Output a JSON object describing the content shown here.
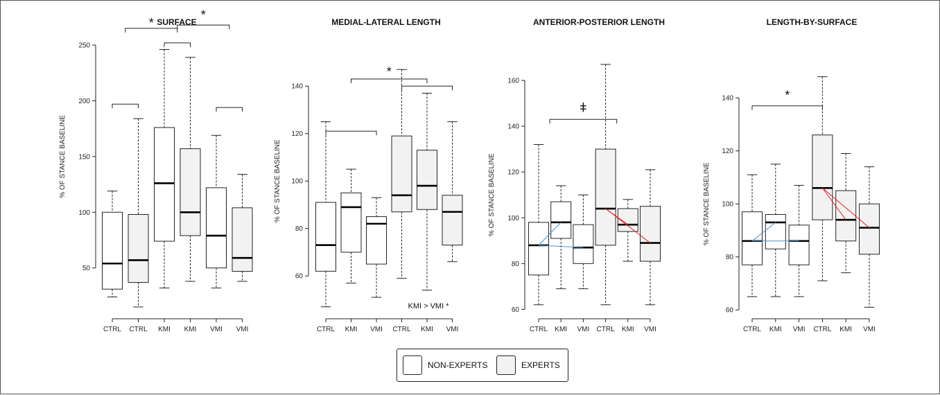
{
  "styles": {
    "non_experts_fill": "#ffffff",
    "experts_fill": "#f2f2f2",
    "line": "#222222",
    "median": "#000000",
    "blue": "#4a90d0",
    "red": "#e02020"
  },
  "legend": [
    {
      "label": "NON-EXPERTS",
      "fill": "#ffffff"
    },
    {
      "label": "EXPERTS",
      "fill": "#f2f2f2"
    }
  ],
  "chart_data": [
    {
      "type": "boxplot",
      "title": "SURFACE",
      "ylabel": "% OF STANCE BASELINE",
      "ylim": [
        10,
        255
      ],
      "yticks": [
        50,
        100,
        150,
        200,
        250
      ],
      "categories": [
        "CTRL",
        "CTRL",
        "KMI",
        "KMI",
        "VMI",
        "VMI"
      ],
      "groups": [
        "NON-EXPERTS",
        "EXPERTS",
        "NON-EXPERTS",
        "EXPERTS",
        "NON-EXPERTS",
        "EXPERTS"
      ],
      "boxes": [
        {
          "min": 24,
          "q1": 31,
          "median": 54,
          "q3": 100,
          "max": 119
        },
        {
          "min": 15,
          "q1": 37,
          "median": 57,
          "q3": 98,
          "max": 184
        },
        {
          "min": 32,
          "q1": 74,
          "median": 126,
          "q3": 176,
          "max": 246
        },
        {
          "min": 38,
          "q1": 79,
          "median": 100,
          "q3": 157,
          "max": 239
        },
        {
          "min": 32,
          "q1": 50,
          "median": 79,
          "q3": 122,
          "max": 169
        },
        {
          "min": 38,
          "q1": 47,
          "median": 59,
          "q3": 104,
          "max": 134
        }
      ],
      "brackets": [
        {
          "from": 0,
          "to": 1,
          "y": 197
        },
        {
          "from": 2,
          "to": 3,
          "y": 252
        },
        {
          "from": 4,
          "to": 5,
          "y": 194
        },
        {
          "from": 0.5,
          "to": 2.5,
          "y": 265
        },
        {
          "from": 2.5,
          "to": 4.5,
          "y": 268
        }
      ],
      "stars": [
        {
          "text": "*",
          "between": 1.5,
          "y": 270
        },
        {
          "text": "*",
          "between": 3.5,
          "y": 277
        }
      ],
      "lines": [],
      "annotation": ""
    },
    {
      "type": "boxplot",
      "title": "MEDIAL-LATERAL LENGTH",
      "ylabel": "% OF STANCE BASELINE",
      "ylim": [
        44,
        150
      ],
      "yticks": [
        60,
        80,
        100,
        120,
        140
      ],
      "categories": [
        "CTRL",
        "KMI",
        "VMI",
        "CTRL",
        "KMI",
        "VMI"
      ],
      "groups": [
        "NON-EXPERTS",
        "NON-EXPERTS",
        "NON-EXPERTS",
        "EXPERTS",
        "EXPERTS",
        "EXPERTS"
      ],
      "boxes": [
        {
          "min": 47,
          "q1": 62,
          "median": 73,
          "q3": 91,
          "max": 125
        },
        {
          "min": 57,
          "q1": 70,
          "median": 89,
          "q3": 95,
          "max": 105
        },
        {
          "min": 51,
          "q1": 65,
          "median": 82,
          "q3": 85,
          "max": 93
        },
        {
          "min": 59,
          "q1": 87,
          "median": 94,
          "q3": 119,
          "max": 147
        },
        {
          "min": 54,
          "q1": 88,
          "median": 98,
          "q3": 113,
          "max": 137
        },
        {
          "min": 66,
          "q1": 73,
          "median": 87,
          "q3": 94,
          "max": 125
        }
      ],
      "brackets": [
        {
          "from": 0,
          "to": 2,
          "y": 121
        },
        {
          "from": 3,
          "to": 5,
          "y": 140
        },
        {
          "from": 1,
          "to": 4,
          "y": 143
        }
      ],
      "stars": [
        {
          "text": "*",
          "between": 2.5,
          "y": 146
        }
      ],
      "lines": [],
      "annotation": "KMI > VMI *"
    },
    {
      "type": "boxplot",
      "title": "ANTERIOR-POSTERIOR LENGTH",
      "ylabel": "% OF STANCE BASELINE",
      "ylim": [
        58,
        170
      ],
      "yticks": [
        60,
        80,
        100,
        120,
        140,
        160
      ],
      "categories": [
        "CTRL",
        "KMI",
        "VMI",
        "CTRL",
        "KMI",
        "VMI"
      ],
      "groups": [
        "NON-EXPERTS",
        "NON-EXPERTS",
        "NON-EXPERTS",
        "EXPERTS",
        "EXPERTS",
        "EXPERTS"
      ],
      "boxes": [
        {
          "min": 62,
          "q1": 75,
          "median": 88,
          "q3": 98,
          "max": 132
        },
        {
          "min": 69,
          "q1": 91,
          "median": 98,
          "q3": 107,
          "max": 114
        },
        {
          "min": 69,
          "q1": 80,
          "median": 87,
          "q3": 97,
          "max": 110
        },
        {
          "min": 62,
          "q1": 88,
          "median": 104,
          "q3": 130,
          "max": 167
        },
        {
          "min": 81,
          "q1": 94,
          "median": 97,
          "q3": 104,
          "max": 108
        },
        {
          "min": 62,
          "q1": 81,
          "median": 89,
          "q3": 105,
          "max": 121
        }
      ],
      "brackets": [
        {
          "from": 0.5,
          "to": 3.5,
          "y": 143
        }
      ],
      "stars": [
        {
          "text": "ǂ",
          "between": 2,
          "y": 148
        }
      ],
      "lines": [
        {
          "color": "blue",
          "from": 0,
          "to": 1,
          "y1": 88,
          "y2": 98
        },
        {
          "color": "blue",
          "from": 0,
          "to": 2,
          "y1": 88,
          "y2": 87
        },
        {
          "color": "red",
          "from": 3,
          "to": 4,
          "y1": 104,
          "y2": 97
        },
        {
          "color": "red",
          "from": 3,
          "to": 5,
          "y1": 104,
          "y2": 89
        }
      ],
      "annotation": ""
    },
    {
      "type": "boxplot",
      "title": "LENGTH-BY-SURFACE",
      "ylabel": "% OF STANCE BASELINE",
      "ylim": [
        59,
        150
      ],
      "yticks": [
        60,
        80,
        100,
        120,
        140
      ],
      "categories": [
        "CTRL",
        "KMI",
        "VMI",
        "CTRL",
        "KMI",
        "VMI"
      ],
      "groups": [
        "NON-EXPERTS",
        "NON-EXPERTS",
        "NON-EXPERTS",
        "EXPERTS",
        "EXPERTS",
        "EXPERTS"
      ],
      "boxes": [
        {
          "min": 65,
          "q1": 77,
          "median": 86,
          "q3": 97,
          "max": 111
        },
        {
          "min": 65,
          "q1": 83,
          "median": 93,
          "q3": 96,
          "max": 115
        },
        {
          "min": 65,
          "q1": 77,
          "median": 86,
          "q3": 92,
          "max": 107
        },
        {
          "min": 71,
          "q1": 94,
          "median": 106,
          "q3": 126,
          "max": 148
        },
        {
          "min": 74,
          "q1": 86,
          "median": 94,
          "q3": 105,
          "max": 119
        },
        {
          "min": 61,
          "q1": 81,
          "median": 91,
          "q3": 100,
          "max": 114
        }
      ],
      "brackets": [
        {
          "from": 0,
          "to": 3,
          "y": 137
        }
      ],
      "stars": [
        {
          "text": "*",
          "between": 1.5,
          "y": 141
        }
      ],
      "lines": [
        {
          "color": "blue",
          "from": 0,
          "to": 1,
          "y1": 86,
          "y2": 93
        },
        {
          "color": "blue",
          "from": 0,
          "to": 2,
          "y1": 86,
          "y2": 86
        },
        {
          "color": "red",
          "from": 3,
          "to": 4,
          "y1": 106,
          "y2": 94
        },
        {
          "color": "red",
          "from": 3,
          "to": 5,
          "y1": 106,
          "y2": 91
        }
      ],
      "annotation": ""
    }
  ]
}
